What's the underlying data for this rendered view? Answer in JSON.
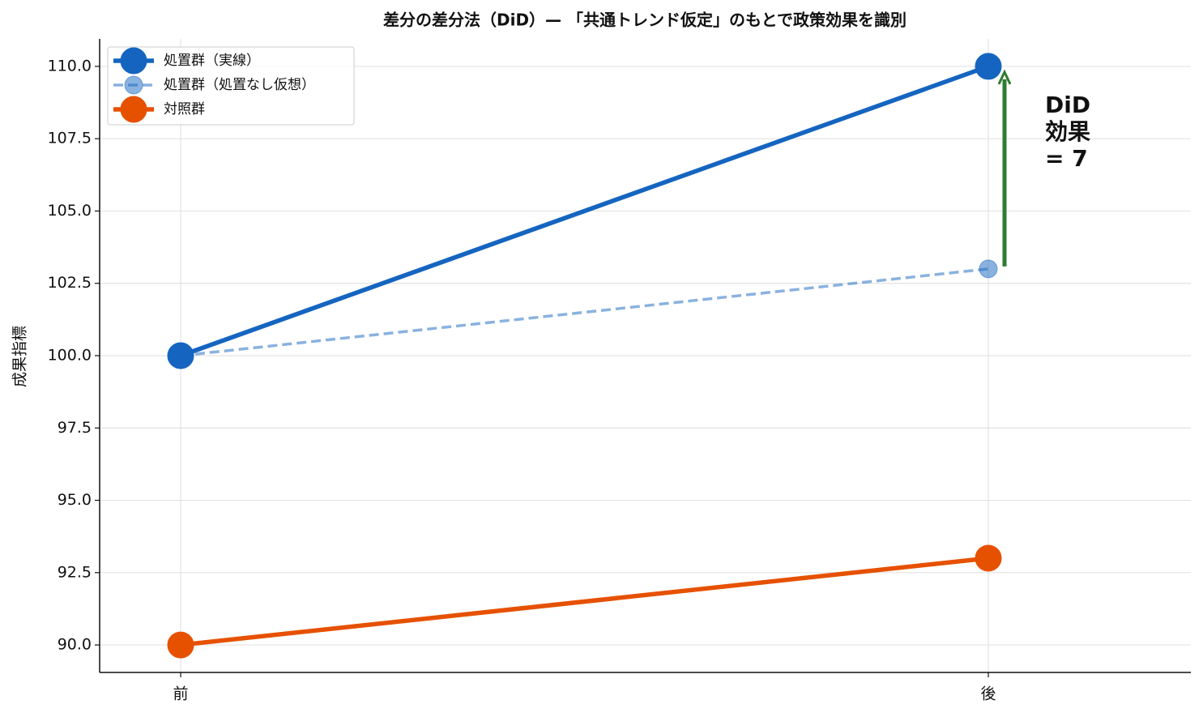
{
  "chart_data": {
    "type": "line",
    "title": "差分の差分法（DiD）— 「共通トレンド仮定」のもとで政策効果を識別",
    "y_label": "成果指標",
    "categories": [
      "前",
      "後"
    ],
    "series": [
      {
        "name": "処置群（実線）",
        "color": "#1565c0",
        "values": [
          100,
          110
        ]
      },
      {
        "name": "処置群（処置なし仮想）",
        "color": "#1565c0",
        "values": [
          100,
          103
        ],
        "linestyle": "dashed",
        "alpha": 0.5
      },
      {
        "name": "対照群",
        "color": "#e65100",
        "values": [
          90,
          93
        ]
      }
    ],
    "ylim": [
      89.05,
      110.95
    ],
    "yticks": [
      {
        "value": 90,
        "label": "90.0"
      },
      {
        "value": 92.5,
        "label": "92.5"
      },
      {
        "value": 95,
        "label": "95.0"
      },
      {
        "value": 97.5,
        "label": "97.5"
      },
      {
        "value": 100,
        "label": "100.0"
      },
      {
        "value": 102.5,
        "label": "102.5"
      },
      {
        "value": 105,
        "label": "105.0"
      },
      {
        "value": 107.5,
        "label": "107.5"
      },
      {
        "value": 110,
        "label": "110.0"
      }
    ],
    "grid": true,
    "legend": "upper left",
    "annotation": {
      "lines": [
        "DiD",
        "効果",
        "= 7"
      ],
      "color": "#2e7d32"
    }
  }
}
